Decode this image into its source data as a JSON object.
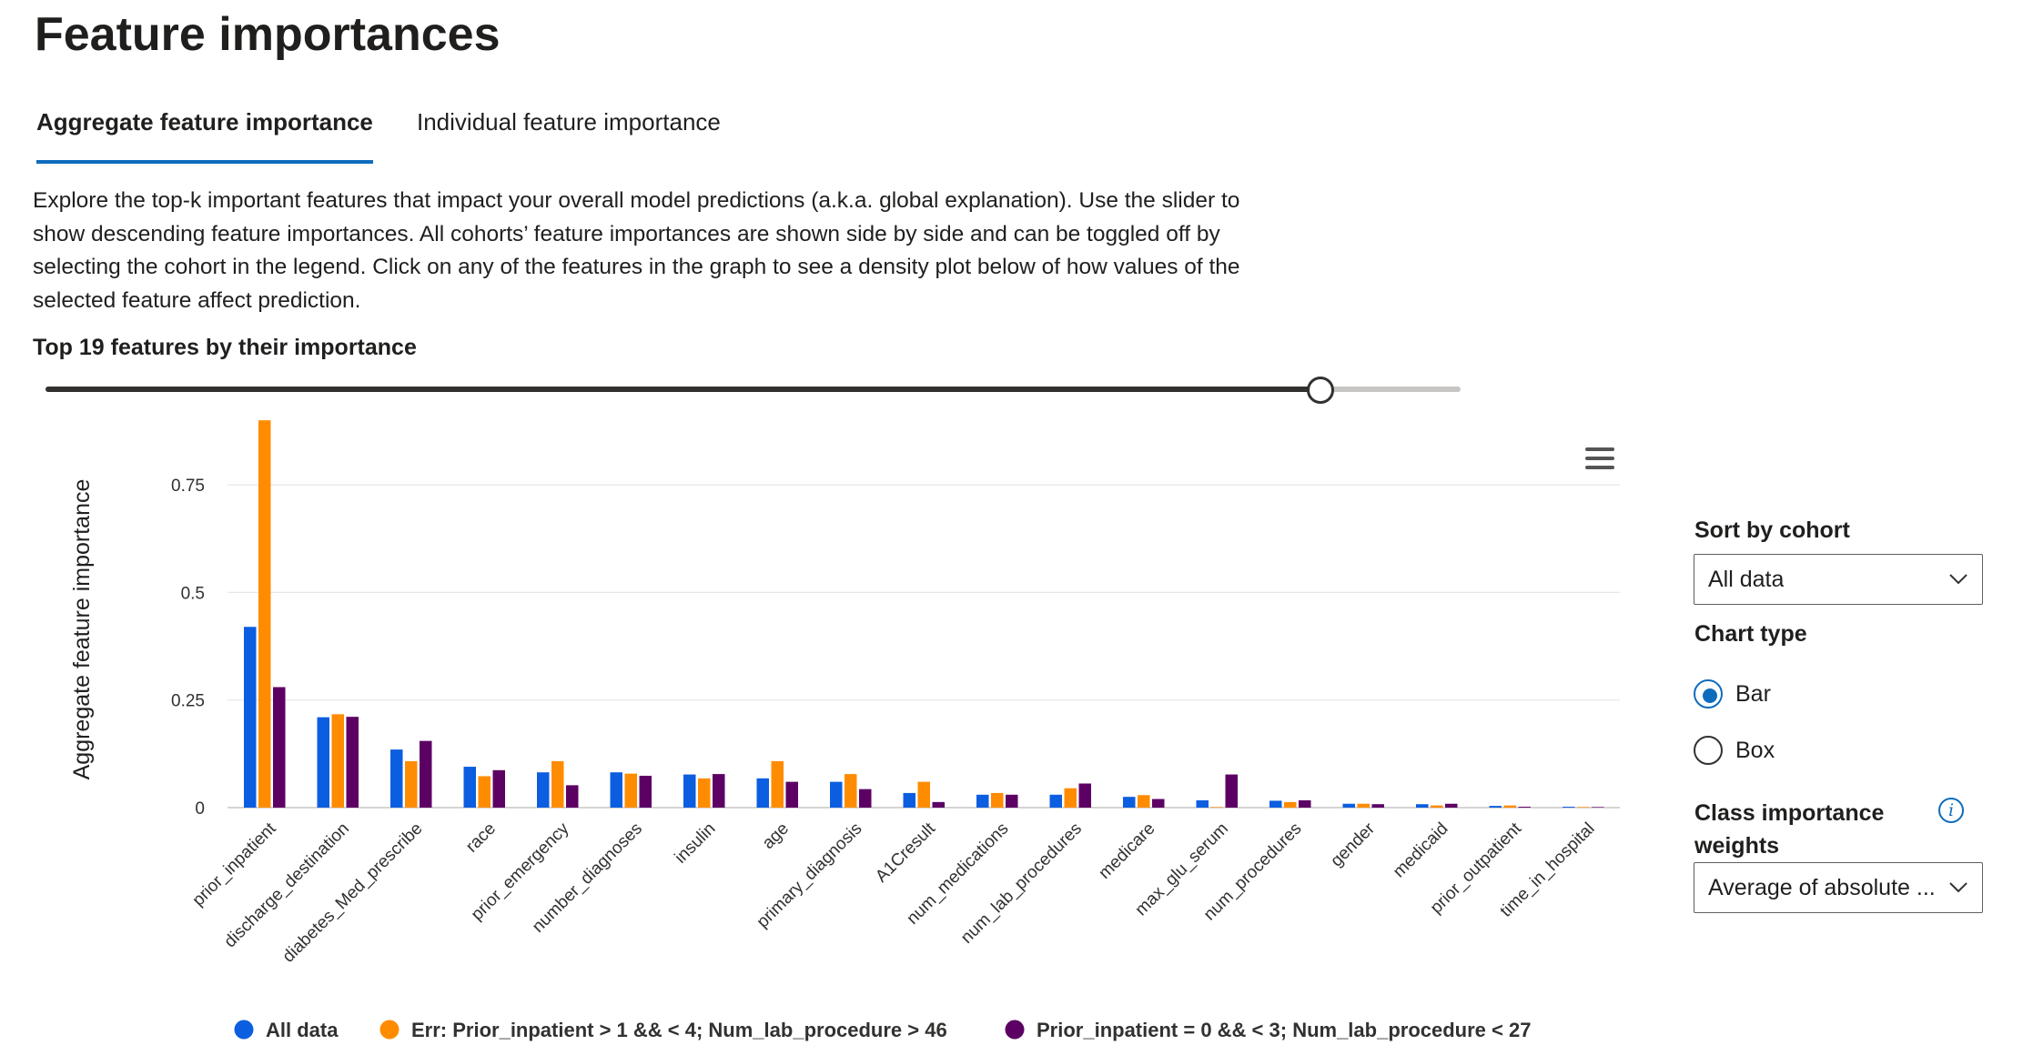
{
  "page": {
    "title": "Feature importances"
  },
  "tabs": [
    {
      "label": "Aggregate feature importance",
      "active": true
    },
    {
      "label": "Individual feature importance",
      "active": false
    }
  ],
  "description": "Explore the top-k important features that impact your overall model predictions (a.k.a. global explanation). Use the slider to show descending feature importances. All cohorts’ feature importances are shown side by side and can be toggled off by selecting the cohort in the legend. Click on any of the features in the graph to see a density plot below of how values of the selected feature affect prediction.",
  "slider": {
    "label": "Top 19 features by their importance",
    "value": 19,
    "min": 1,
    "max": 20
  },
  "chart_menu_icon": "hamburger-menu-icon",
  "sidebar": {
    "sort_by_cohort": {
      "label": "Sort by cohort",
      "value": "All data",
      "icon": "chevron-down-icon"
    },
    "chart_type": {
      "label": "Chart type",
      "options": [
        {
          "label": "Bar",
          "checked": true
        },
        {
          "label": "Box",
          "checked": false
        }
      ]
    },
    "class_importance": {
      "label": "Class importance weights",
      "value": "Average of absolute ...",
      "icon": "chevron-down-icon",
      "info_icon": "info-icon",
      "info_glyph": "i"
    }
  },
  "chart_data": {
    "type": "bar",
    "ylabel": "Aggregate feature importance",
    "xlabel": "",
    "ylim": [
      0,
      0.9
    ],
    "yticks": [
      0,
      0.25,
      0.5,
      0.75
    ],
    "ytick_labels": [
      "0",
      "0.25",
      "0.5",
      "0.75"
    ],
    "grid": true,
    "legend_position": "bottom",
    "categories": [
      "prior_inpatient",
      "discharge_destination",
      "diabetes_Med_prescribe",
      "race",
      "prior_emergency",
      "number_diagnoses",
      "insulin",
      "age",
      "primary_diagnosis",
      "A1Cresult",
      "num_medications",
      "num_lab_procedures",
      "medicare",
      "max_glu_serum",
      "num_procedures",
      "gender",
      "medicaid",
      "prior_outpatient",
      "time_in_hospital"
    ],
    "series": [
      {
        "name": "All data",
        "color": "#0c5ee0",
        "values": [
          0.42,
          0.21,
          0.135,
          0.095,
          0.082,
          0.082,
          0.077,
          0.068,
          0.06,
          0.034,
          0.03,
          0.03,
          0.025,
          0.017,
          0.016,
          0.009,
          0.008,
          0.004,
          0.002
        ]
      },
      {
        "name": "Err: Prior_inpatient > 1 && < 4; Num_lab_procedure > 46",
        "color": "#ff8c00",
        "values": [
          0.9,
          0.217,
          0.108,
          0.073,
          0.108,
          0.079,
          0.068,
          0.108,
          0.078,
          0.06,
          0.034,
          0.045,
          0.029,
          0.0,
          0.013,
          0.009,
          0.005,
          0.005,
          0.001
        ]
      },
      {
        "name": "Prior_inpatient = 0 && < 3; Num_lab_procedure < 27",
        "color": "#5c0064",
        "values": [
          0.28,
          0.211,
          0.155,
          0.087,
          0.052,
          0.074,
          0.078,
          0.06,
          0.043,
          0.013,
          0.03,
          0.056,
          0.02,
          0.077,
          0.017,
          0.008,
          0.009,
          0.002,
          0.001
        ]
      }
    ]
  }
}
